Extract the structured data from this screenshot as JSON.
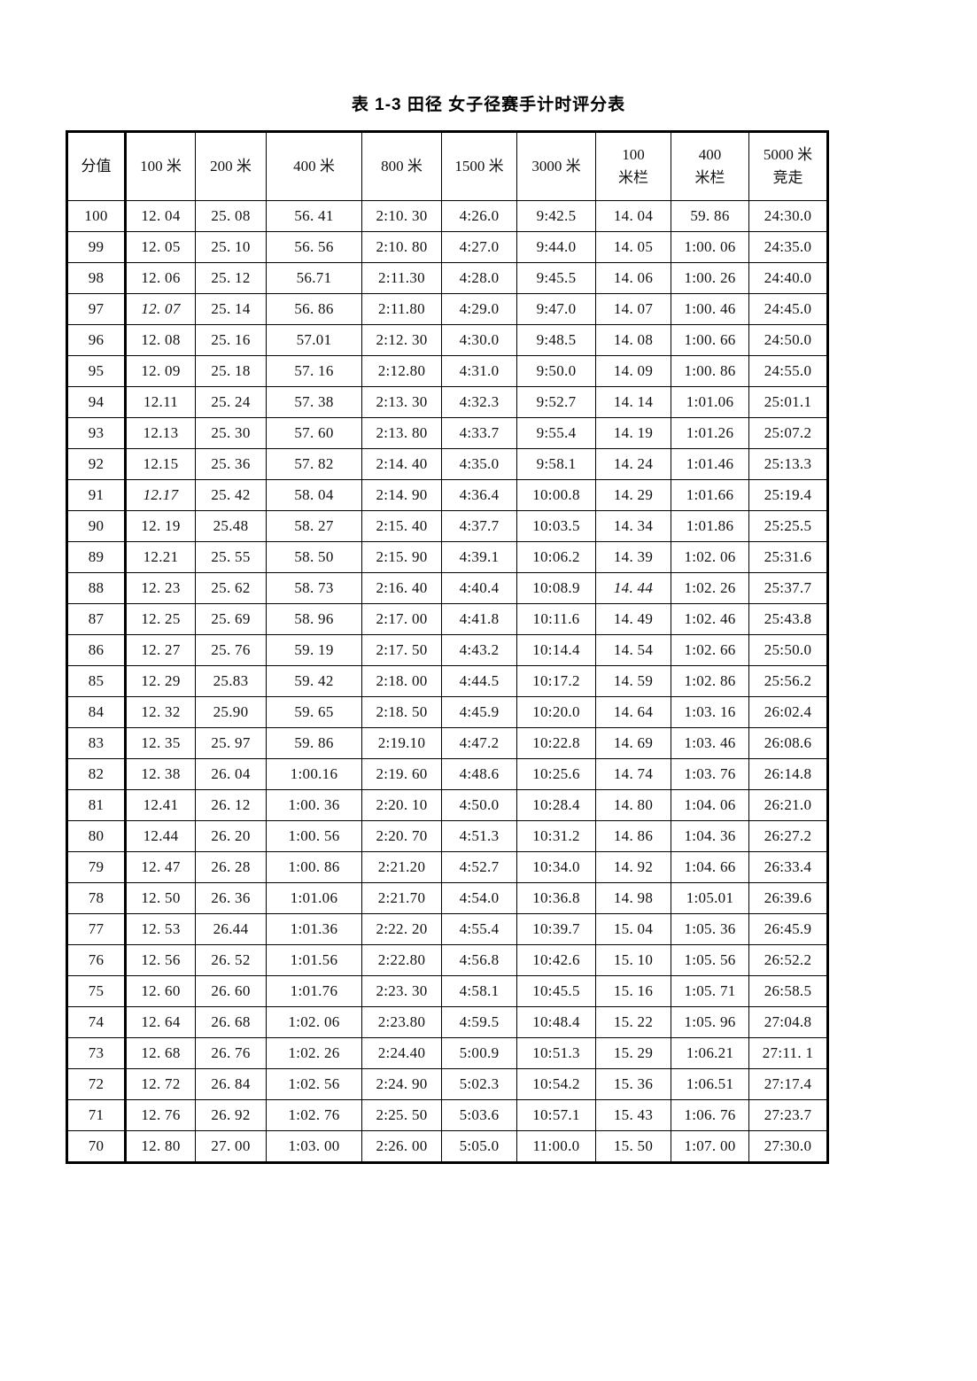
{
  "page": {
    "background_color": "#ffffff",
    "text_color": "#111111",
    "border_color": "#000000"
  },
  "title": "表 1-3 田径 女子径赛手计时评分表",
  "table": {
    "headers": [
      "分值",
      "100 米",
      "200 米",
      "400 米",
      "800 米",
      "1500 米",
      "3000 米",
      "100\n米栏",
      "400\n米栏",
      "5000 米\n竞走"
    ],
    "rows": [
      [
        "100",
        "12. 04",
        "25. 08",
        "56. 41",
        "2:10. 30",
        "4:26.0",
        "9:42.5",
        "14. 04",
        "59. 86",
        "24:30.0"
      ],
      [
        "99",
        "12. 05",
        "25. 10",
        "56. 56",
        "2:10. 80",
        "4:27.0",
        "9:44.0",
        "14. 05",
        "1:00. 06",
        "24:35.0"
      ],
      [
        "98",
        "12. 06",
        "25. 12",
        "56.71",
        "2:11.30",
        "4:28.0",
        "9:45.5",
        "14. 06",
        "1:00. 26",
        "24:40.0"
      ],
      [
        "97",
        "12. 07",
        "25. 14",
        "56. 86",
        "2:11.80",
        "4:29.0",
        "9:47.0",
        "14. 07",
        "1:00. 46",
        "24:45.0"
      ],
      [
        "96",
        "12. 08",
        "25. 16",
        "57.01",
        "2:12. 30",
        "4:30.0",
        "9:48.5",
        "14. 08",
        "1:00. 66",
        "24:50.0"
      ],
      [
        "95",
        "12. 09",
        "25. 18",
        "57. 16",
        "2:12.80",
        "4:31.0",
        "9:50.0",
        "14. 09",
        "1:00. 86",
        "24:55.0"
      ],
      [
        "94",
        "12.11",
        "25. 24",
        "57. 38",
        "2:13. 30",
        "4:32.3",
        "9:52.7",
        "14. 14",
        "1:01.06",
        "25:01.1"
      ],
      [
        "93",
        "12.13",
        "25. 30",
        "57. 60",
        "2:13. 80",
        "4:33.7",
        "9:55.4",
        "14. 19",
        "1:01.26",
        "25:07.2"
      ],
      [
        "92",
        "12.15",
        "25. 36",
        "57. 82",
        "2:14. 40",
        "4:35.0",
        "9:58.1",
        "14. 24",
        "1:01.46",
        "25:13.3"
      ],
      [
        "91",
        "12.17",
        "25. 42",
        "58. 04",
        "2:14. 90",
        "4:36.4",
        "10:00.8",
        "14. 29",
        "1:01.66",
        "25:19.4"
      ],
      [
        "90",
        "12. 19",
        "25.48",
        "58. 27",
        "2:15. 40",
        "4:37.7",
        "10:03.5",
        "14. 34",
        "1:01.86",
        "25:25.5"
      ],
      [
        "89",
        "12.21",
        "25. 55",
        "58. 50",
        "2:15. 90",
        "4:39.1",
        "10:06.2",
        "14. 39",
        "1:02. 06",
        "25:31.6"
      ],
      [
        "88",
        "12. 23",
        "25. 62",
        "58. 73",
        "2:16. 40",
        "4:40.4",
        "10:08.9",
        "14. 44",
        "1:02. 26",
        "25:37.7"
      ],
      [
        "87",
        "12. 25",
        "25. 69",
        "58. 96",
        "2:17. 00",
        "4:41.8",
        "10:11.6",
        "14. 49",
        "1:02. 46",
        "25:43.8"
      ],
      [
        "86",
        "12. 27",
        "25. 76",
        "59. 19",
        "2:17. 50",
        "4:43.2",
        "10:14.4",
        "14. 54",
        "1:02. 66",
        "25:50.0"
      ],
      [
        "85",
        "12. 29",
        "25.83",
        "59. 42",
        "2:18. 00",
        "4:44.5",
        "10:17.2",
        "14. 59",
        "1:02. 86",
        "25:56.2"
      ],
      [
        "84",
        "12. 32",
        "25.90",
        "59. 65",
        "2:18. 50",
        "4:45.9",
        "10:20.0",
        "14. 64",
        "1:03. 16",
        "26:02.4"
      ],
      [
        "83",
        "12. 35",
        "25. 97",
        "59. 86",
        "2:19.10",
        "4:47.2",
        "10:22.8",
        "14. 69",
        "1:03. 46",
        "26:08.6"
      ],
      [
        "82",
        "12. 38",
        "26. 04",
        "1:00.16",
        "2:19. 60",
        "4:48.6",
        "10:25.6",
        "14. 74",
        "1:03. 76",
        "26:14.8"
      ],
      [
        "81",
        "12.41",
        "26. 12",
        "1:00. 36",
        "2:20. 10",
        "4:50.0",
        "10:28.4",
        "14. 80",
        "1:04. 06",
        "26:21.0"
      ],
      [
        "80",
        "12.44",
        "26. 20",
        "1:00. 56",
        "2:20. 70",
        "4:51.3",
        "10:31.2",
        "14. 86",
        "1:04. 36",
        "26:27.2"
      ],
      [
        "79",
        "12. 47",
        "26. 28",
        "1:00. 86",
        "2:21.20",
        "4:52.7",
        "10:34.0",
        "14. 92",
        "1:04. 66",
        "26:33.4"
      ],
      [
        "78",
        "12. 50",
        "26. 36",
        "1:01.06",
        "2:21.70",
        "4:54.0",
        "10:36.8",
        "14. 98",
        "1:05.01",
        "26:39.6"
      ],
      [
        "77",
        "12. 53",
        "26.44",
        "1:01.36",
        "2:22. 20",
        "4:55.4",
        "10:39.7",
        "15. 04",
        "1:05. 36",
        "26:45.9"
      ],
      [
        "76",
        "12. 56",
        "26. 52",
        "1:01.56",
        "2:22.80",
        "4:56.8",
        "10:42.6",
        "15. 10",
        "1:05. 56",
        "26:52.2"
      ],
      [
        "75",
        "12. 60",
        "26. 60",
        "1:01.76",
        "2:23. 30",
        "4:58.1",
        "10:45.5",
        "15. 16",
        "1:05. 71",
        "26:58.5"
      ],
      [
        "74",
        "12. 64",
        "26. 68",
        "1:02. 06",
        "2:23.80",
        "4:59.5",
        "10:48.4",
        "15. 22",
        "1:05. 96",
        "27:04.8"
      ],
      [
        "73",
        "12. 68",
        "26. 76",
        "1:02. 26",
        "2:24.40",
        "5:00.9",
        "10:51.3",
        "15. 29",
        "1:06.21",
        "27:11. 1"
      ],
      [
        "72",
        "12. 72",
        "26. 84",
        "1:02. 56",
        "2:24. 90",
        "5:02.3",
        "10:54.2",
        "15. 36",
        "1:06.51",
        "27:17.4"
      ],
      [
        "71",
        "12. 76",
        "26. 92",
        "1:02. 76",
        "2:25. 50",
        "5:03.6",
        "10:57.1",
        "15. 43",
        "1:06. 76",
        "27:23.7"
      ],
      [
        "70",
        "12. 80",
        "27. 00",
        "1:03. 00",
        "2:26. 00",
        "5:05.0",
        "11:00.0",
        "15. 50",
        "1:07. 00",
        "27:30.0"
      ]
    ],
    "italic_cells": [
      [
        3,
        1
      ],
      [
        9,
        1
      ],
      [
        12,
        7
      ]
    ]
  }
}
